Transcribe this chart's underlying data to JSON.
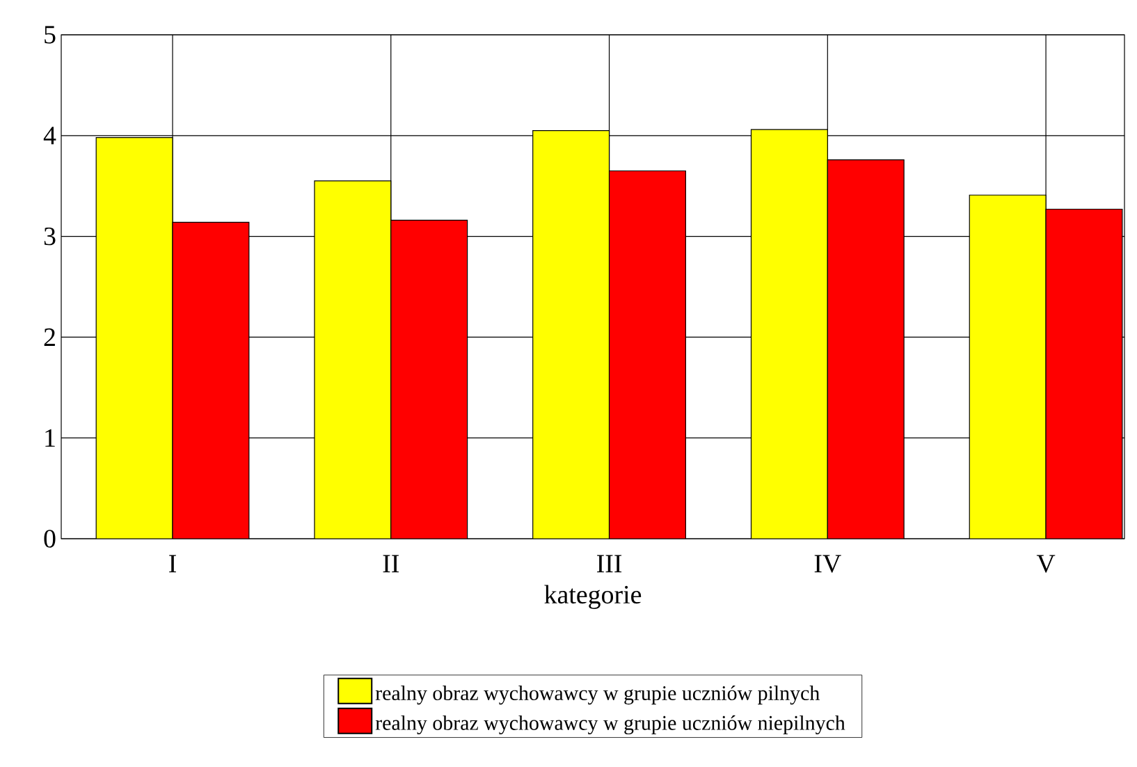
{
  "chart_data": {
    "type": "bar",
    "xlabel": "kategorie",
    "categories": [
      "I",
      "II",
      "III",
      "IV",
      "V"
    ],
    "series": [
      {
        "name": "realny obraz wychowawcy w grupie uczniów pilnych",
        "color": "#ffff00",
        "values": [
          3.98,
          3.55,
          4.05,
          4.06,
          3.41
        ]
      },
      {
        "name": "realny obraz wychowawcy w grupie uczniów niepilnych",
        "color": "#ff0000",
        "values": [
          3.14,
          3.16,
          3.65,
          3.76,
          3.27
        ]
      }
    ],
    "ylim": [
      0,
      5
    ],
    "yticks": [
      0,
      1,
      2,
      3,
      4,
      5
    ],
    "grid": true,
    "legend": "bottom"
  }
}
